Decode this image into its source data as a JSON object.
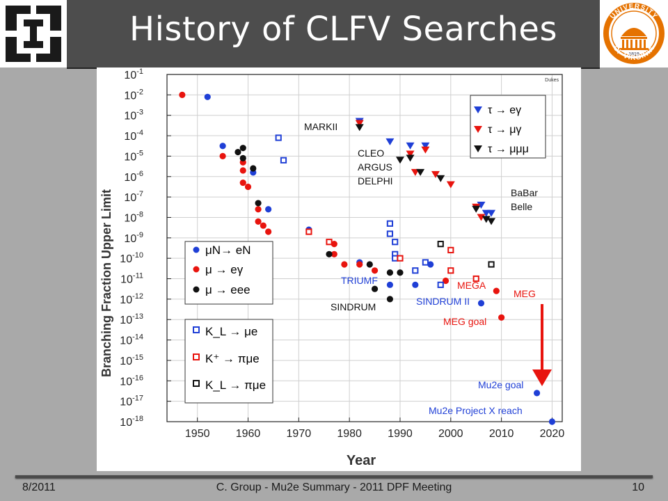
{
  "slide": {
    "title": "History of CLFV Searches",
    "footer_date": "8/2011",
    "footer_center": "C. Group - Mu2e Summary - 2011 DPF Meeting",
    "footer_page": "10",
    "colors": {
      "header_bg": "#4d4d4d",
      "background": "#a9a9a9",
      "univ_orange": "#e57200",
      "univ_navy": "#232d4b"
    },
    "logos": [
      {
        "name": "fermilab-logo"
      },
      {
        "name": "university-of-virginia-seal",
        "text": [
          "UNIVERSITY",
          "OF",
          "VIRGINIA",
          "1819"
        ]
      }
    ]
  },
  "chart_data": {
    "type": "scatter",
    "xlabel": "Year",
    "ylabel": "Branching Fraction Upper Limit",
    "credit": "Dukes",
    "xlim": [
      1944,
      2022
    ],
    "ylim": [
      -18,
      -1
    ],
    "y_scale": "log10",
    "x_ticks": [
      "1950",
      "1960",
      "1970",
      "1980",
      "1990",
      "2000",
      "2010",
      "2020"
    ],
    "y_ticks": [
      {
        "base": "10",
        "exp": "-1"
      },
      {
        "base": "10",
        "exp": "-2"
      },
      {
        "base": "10",
        "exp": "-3"
      },
      {
        "base": "10",
        "exp": "-4"
      },
      {
        "base": "10",
        "exp": "-5"
      },
      {
        "base": "10",
        "exp": "-6"
      },
      {
        "base": "10",
        "exp": "-7"
      },
      {
        "base": "10",
        "exp": "-8"
      },
      {
        "base": "10",
        "exp": "-9"
      },
      {
        "base": "10",
        "exp": "-10"
      },
      {
        "base": "10",
        "exp": "-11"
      },
      {
        "base": "10",
        "exp": "-12"
      },
      {
        "base": "10",
        "exp": "-13"
      },
      {
        "base": "10",
        "exp": "-14"
      },
      {
        "base": "10",
        "exp": "-15"
      },
      {
        "base": "10",
        "exp": "-16"
      },
      {
        "base": "10",
        "exp": "-17"
      },
      {
        "base": "10",
        "exp": "-18"
      }
    ],
    "grid": true,
    "series": [
      {
        "name": "μN → eN",
        "marker": "circle",
        "color": "#1f3fd6",
        "points": [
          [
            1952,
            -2.1
          ],
          [
            1955,
            -4.5
          ],
          [
            1961,
            -5.8
          ],
          [
            1964,
            -7.6
          ],
          [
            1972,
            -8.6
          ],
          [
            1982,
            -10.2
          ],
          [
            1988,
            -11.3
          ],
          [
            1993,
            -11.3
          ],
          [
            1996,
            -10.3
          ],
          [
            2006,
            -12.2
          ],
          [
            2017,
            -16.6
          ],
          [
            2020,
            -18.0
          ]
        ]
      },
      {
        "name": "μ → eγ",
        "marker": "circle",
        "color": "#e8140e",
        "points": [
          [
            1947,
            -2.0
          ],
          [
            1955,
            -5.0
          ],
          [
            1959,
            -5.3
          ],
          [
            1959,
            -5.7
          ],
          [
            1959,
            -6.3
          ],
          [
            1960,
            -6.5
          ],
          [
            1962,
            -7.6
          ],
          [
            1962,
            -8.2
          ],
          [
            1963,
            -8.4
          ],
          [
            1964,
            -8.7
          ],
          [
            1977,
            -9.3
          ],
          [
            1977,
            -9.8
          ],
          [
            1979,
            -10.3
          ],
          [
            1982,
            -10.3
          ],
          [
            1985,
            -10.6
          ],
          [
            1999,
            -11.1
          ],
          [
            2009,
            -11.6
          ],
          [
            2010,
            -12.9
          ]
        ]
      },
      {
        "name": "μ → eee",
        "marker": "circle",
        "color": "#111111",
        "points": [
          [
            1958,
            -4.8
          ],
          [
            1959,
            -4.6
          ],
          [
            1959,
            -5.1
          ],
          [
            1961,
            -5.6
          ],
          [
            1962,
            -7.3
          ],
          [
            1976,
            -9.8
          ],
          [
            1984,
            -10.3
          ],
          [
            1985,
            -11.5
          ],
          [
            1988,
            -10.7
          ],
          [
            1988,
            -12.0
          ],
          [
            1990,
            -10.7
          ]
        ]
      },
      {
        "name": "K_L → μe",
        "marker": "square",
        "color": "#1f3fd6",
        "points": [
          [
            1966,
            -4.1
          ],
          [
            1967,
            -5.2
          ],
          [
            1988,
            -8.3
          ],
          [
            1988,
            -8.8
          ],
          [
            1989,
            -9.2
          ],
          [
            1989,
            -9.8
          ],
          [
            1989,
            -10.0
          ],
          [
            1993,
            -10.6
          ],
          [
            1995,
            -10.2
          ],
          [
            1998,
            -11.3
          ]
        ]
      },
      {
        "name": "K⁺ → πμe",
        "marker": "square",
        "color": "#e8140e",
        "points": [
          [
            1972,
            -8.7
          ],
          [
            1976,
            -9.2
          ],
          [
            1990,
            -10.0
          ],
          [
            2000,
            -9.6
          ],
          [
            2000,
            -10.6
          ],
          [
            2005,
            -11.0
          ]
        ]
      },
      {
        "name": "K_L → πμe",
        "marker": "square",
        "color": "#111111",
        "points": [
          [
            1998,
            -9.3
          ],
          [
            2008,
            -10.3
          ]
        ]
      },
      {
        "name": "τ → eγ",
        "marker": "triangle-down",
        "color": "#1f3fd6",
        "points": [
          [
            1982,
            -3.3
          ],
          [
            1988,
            -4.3
          ],
          [
            1992,
            -4.5
          ],
          [
            1995,
            -4.5
          ],
          [
            2006,
            -7.4
          ],
          [
            2007,
            -7.8
          ],
          [
            2008,
            -7.8
          ]
        ]
      },
      {
        "name": "τ → μγ",
        "marker": "triangle-down",
        "color": "#e8140e",
        "points": [
          [
            1982,
            -3.4
          ],
          [
            1992,
            -4.9
          ],
          [
            1993,
            -5.8
          ],
          [
            1995,
            -4.7
          ],
          [
            1997,
            -5.9
          ],
          [
            2000,
            -6.4
          ],
          [
            2005,
            -7.5
          ],
          [
            2006,
            -8.0
          ]
        ]
      },
      {
        "name": "τ → μμμ",
        "marker": "triangle-down",
        "color": "#111111",
        "points": [
          [
            1982,
            -3.6
          ],
          [
            1990,
            -5.2
          ],
          [
            1992,
            -5.1
          ],
          [
            1994,
            -5.8
          ],
          [
            1998,
            -6.1
          ],
          [
            2005,
            -7.6
          ],
          [
            2007,
            -8.1
          ],
          [
            2008,
            -8.2
          ]
        ]
      }
    ],
    "legends": [
      {
        "entries": [
          {
            "series": "μN → eN",
            "label": "μN→ eN"
          },
          {
            "series": "μ → eγ",
            "label": "μ → eγ"
          },
          {
            "series": "μ → eee",
            "label": "μ → eee"
          }
        ]
      },
      {
        "entries": [
          {
            "series": "K_L → μe",
            "label": "K_L → μe"
          },
          {
            "series": "K⁺ → πμe",
            "label": "K⁺ → πμe"
          },
          {
            "series": "K_L → πμe",
            "label": "K_L → πμe"
          }
        ]
      },
      {
        "entries": [
          {
            "series": "τ → eγ",
            "label": "τ → eγ"
          },
          {
            "series": "τ → μγ",
            "label": "τ → μγ"
          },
          {
            "series": "τ → μμμ",
            "label": "τ → μμμ"
          }
        ]
      }
    ],
    "annotations": {
      "markii": "MARKII",
      "cleo": "CLEO",
      "argus": "ARGUS",
      "delphi": "DELPHI",
      "babar": "BaBar",
      "belle": "Belle",
      "triumf": "TRIUMF",
      "sindrum": "SINDRUM",
      "mega": "MEGA",
      "sindrum2": "SINDRUM II",
      "meg": "MEG",
      "meg_goal": "MEG goal",
      "mu2e_goal": "Mu2e goal",
      "mu2e_px": "Mu2e Project X reach"
    },
    "annotation_colors": {
      "black": "#111111",
      "blue": "#1f3fd6",
      "red": "#e8140e"
    }
  }
}
